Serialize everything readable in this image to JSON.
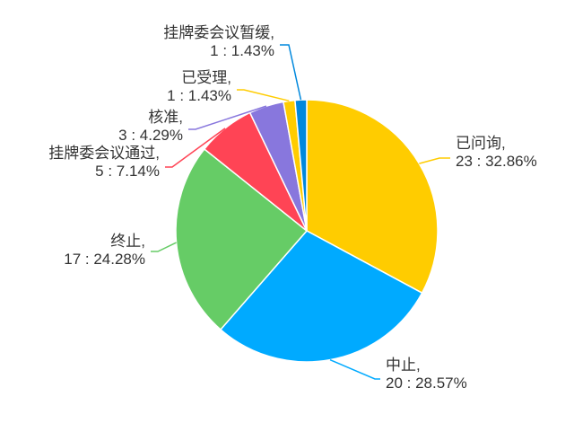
{
  "chart_data": {
    "type": "pie",
    "title": "",
    "start_angle_deg": 0,
    "direction": "clockwise",
    "label_style": "outside-with-leader-lines",
    "slices": [
      {
        "name": "已问询",
        "count": 23,
        "percent": "32.86%",
        "color": "#FFCC00"
      },
      {
        "name": "中止",
        "count": 20,
        "percent": "28.57%",
        "color": "#00AAFF"
      },
      {
        "name": "终止",
        "count": 17,
        "percent": "24.28%",
        "color": "#66CC66"
      },
      {
        "name": "挂牌委会议通过",
        "count": 5,
        "percent": "7.14%",
        "color": "#FF4455"
      },
      {
        "name": "核准",
        "count": 3,
        "percent": "4.29%",
        "color": "#8877DD"
      },
      {
        "name": "已受理",
        "count": 1,
        "percent": "1.43%",
        "color": "#FFCC00"
      },
      {
        "name": "挂牌委会议暂缓",
        "count": 1,
        "percent": "1.43%",
        "color": "#0088DD"
      }
    ]
  }
}
